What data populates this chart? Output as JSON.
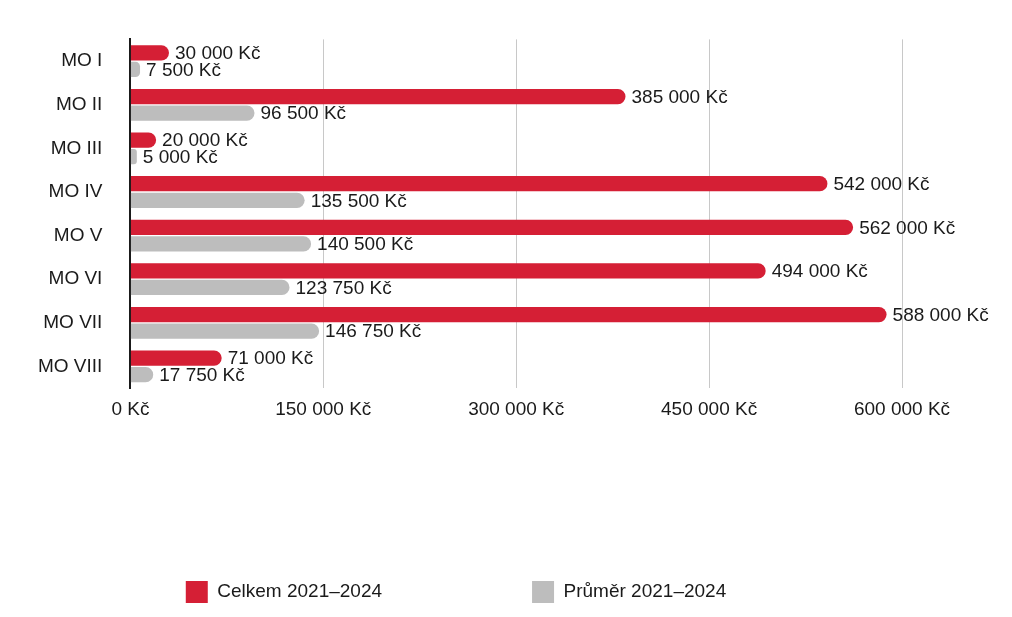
{
  "chart_data": {
    "type": "bar",
    "orientation": "horizontal",
    "categories": [
      "MO I",
      "MO II",
      "MO III",
      "MO IV",
      "MO V",
      "MO VI",
      "MO VII",
      "MO VIII"
    ],
    "series": [
      {
        "name": "Celkem 2021–2024",
        "color": "#d51f35",
        "values": [
          30000,
          385000,
          20000,
          542000,
          562000,
          494000,
          588000,
          71000
        ],
        "value_labels": [
          "30 000 Kč",
          "385 000 Kč",
          "20 000 Kč",
          "542 000 Kč",
          "562 000 Kč",
          "494 000 Kč",
          "588 000 Kč",
          "71 000 Kč"
        ]
      },
      {
        "name": "Průměr 2021–2024",
        "color": "#bdbdbd",
        "values": [
          7500,
          96500,
          5000,
          135500,
          140500,
          123750,
          146750,
          17750
        ],
        "value_labels": [
          "7 500 Kč",
          "96 500 Kč",
          "5 000 Kč",
          "135 500 Kč",
          "140 500 Kč",
          "123 750 Kč",
          "146 750 Kč",
          "17 750 Kč"
        ]
      }
    ],
    "xlim": [
      0,
      600000
    ],
    "xticks": [
      {
        "value": 0,
        "label": "0 Kč"
      },
      {
        "value": 150000,
        "label": "150 000 Kč"
      },
      {
        "value": 300000,
        "label": "300 000 Kč"
      },
      {
        "value": 450000,
        "label": "450 000 Kč"
      },
      {
        "value": 600000,
        "label": "600 000 Kč"
      }
    ],
    "grid": "x",
    "legend": "bottom"
  }
}
